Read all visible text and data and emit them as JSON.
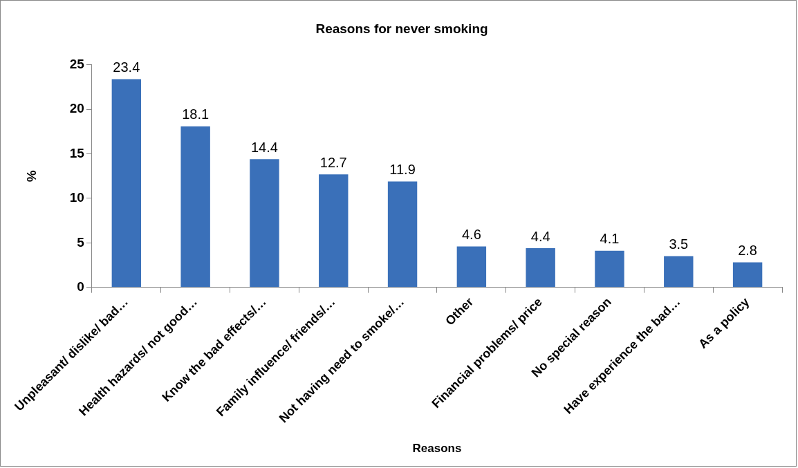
{
  "chart_data": {
    "type": "bar",
    "title": "Reasons for never smoking",
    "xlabel": "Reasons",
    "ylabel": "%",
    "categories": [
      "Unpleasant/ dislike/ bad…",
      "Health hazards/ not good…",
      "Know the bad effects/…",
      "Family influence/ friends/…",
      "Not having need to smoke/…",
      "Other",
      "Financial problems/ price",
      "No special reason",
      "Have experience the bad…",
      "As a policy"
    ],
    "values": [
      23.4,
      18.1,
      14.4,
      12.7,
      11.9,
      4.6,
      4.4,
      4.1,
      3.5,
      2.8
    ],
    "color": "#3a70b9",
    "ylim": [
      0,
      25
    ],
    "yticks": [
      0,
      5,
      10,
      15,
      20,
      25
    ],
    "grid": false,
    "legend": false,
    "data_labels": true
  }
}
